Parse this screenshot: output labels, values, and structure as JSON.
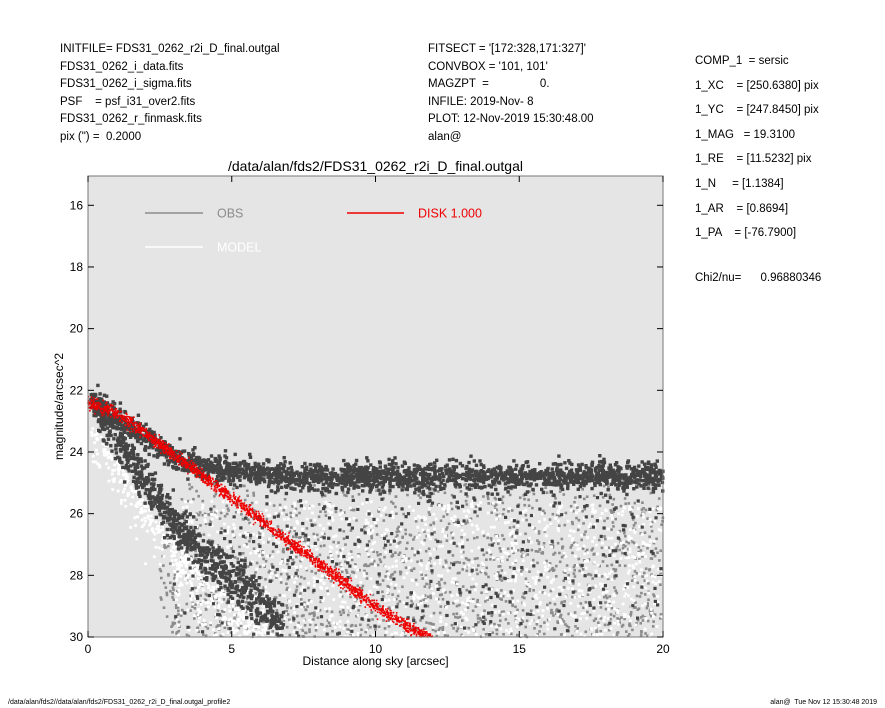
{
  "header_left": [
    "INITFILE= FDS31_0262_r2i_D_final.outgal",
    "FDS31_0262_i_data.fits",
    "FDS31_0262_i_sigma.fits",
    "PSF    = psf_i31_over2.fits",
    "FDS31_0262_r_finmask.fits",
    "pix (\") =  0.2000"
  ],
  "header_mid": [
    "FITSECT = '[172:328,171:327]'",
    "CONVBOX = '101, 101'",
    "MAGZPT  =                0.",
    "INFILE: 2019-Nov- 8",
    "PLOT: 12-Nov-2019 15:30:48.00",
    "alan@"
  ],
  "header_right": [
    "COMP_1  = sersic",
    "1_XC    = [250.6380] pix",
    "1_YC    = [247.8450] pix",
    "1_MAG   = 19.3100",
    "1_RE    = [11.5232] pix",
    "1_N     = [1.1384]",
    "1_AR    = [0.8694]",
    "1_PA    = [-76.7900]"
  ],
  "chi2": "Chi2/nu=      0.96880346",
  "footer_left": "/data/alan/fds2//data/alan/fds2/FDS31_0262_r2i_D_final.outgal_profile2",
  "footer_right": "alan@  Tue Nov 12 15:30:48 2019",
  "colors": {
    "plot_bg": "#e5e5e5",
    "obs_dark": "#444444",
    "obs_light": "#8c8c8c",
    "model": "#ffffff",
    "disk": "#ee0000"
  },
  "chart_data": {
    "type": "scatter",
    "title": "/data/alan/fds2/FDS31_0262_r2i_D_final.outgal",
    "xlabel": "Distance along sky [arcsec]",
    "ylabel": "magnitude/arcsec^2",
    "xlim": [
      0,
      20
    ],
    "ylim": [
      30,
      15
    ],
    "y_inverted": true,
    "xticks": [
      0,
      5,
      10,
      15,
      20
    ],
    "yticks": [
      16,
      18,
      20,
      22,
      24,
      26,
      28,
      30
    ],
    "legend": [
      {
        "label": "OBS",
        "color": "#8c8c8c"
      },
      {
        "label": "DISK  1.000",
        "color": "#ee0000"
      },
      {
        "label": "MODEL",
        "color": "#ffffff"
      }
    ],
    "series": [
      {
        "name": "OBS",
        "x": [
          0.1,
          0.5,
          1,
          2,
          3,
          4,
          5,
          6,
          7,
          8,
          10,
          12,
          14,
          16,
          18,
          20
        ],
        "y": [
          22.4,
          22.6,
          22.9,
          23.5,
          24.2,
          24.5,
          24.6,
          24.7,
          24.8,
          24.8,
          24.8,
          24.8,
          24.8,
          24.8,
          24.8,
          24.8
        ]
      },
      {
        "name": "MODEL",
        "x": [
          0.1,
          0.5,
          1,
          2,
          3,
          4,
          5,
          6,
          7
        ],
        "y": [
          22.5,
          22.9,
          23.6,
          25.0,
          26.2,
          27.3,
          28.1,
          28.9,
          29.8
        ]
      },
      {
        "name": "DISK  1.000",
        "x": [
          0,
          1,
          2,
          3,
          4,
          5,
          6,
          7,
          8,
          9,
          10,
          11,
          12
        ],
        "y": [
          22.4,
          22.75,
          23.4,
          24.1,
          24.8,
          25.5,
          26.2,
          26.9,
          27.6,
          28.3,
          29.0,
          29.6,
          30.1
        ]
      }
    ]
  }
}
